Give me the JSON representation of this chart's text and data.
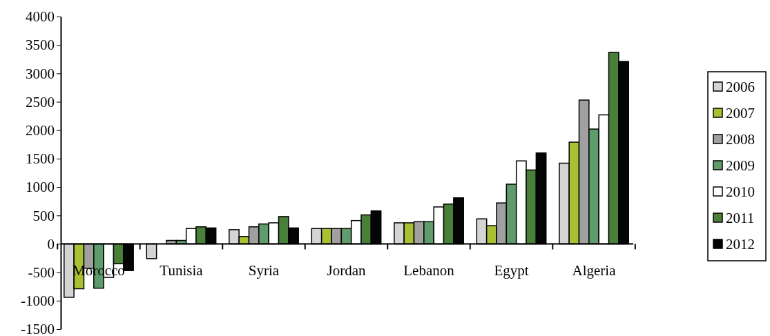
{
  "chart_data": {
    "type": "bar",
    "categories": [
      "Morocco",
      "Tunisia",
      "Syria",
      "Jordan",
      "Lebanon",
      "Egypt",
      "Algeria"
    ],
    "series": [
      {
        "name": "2006",
        "color": "#d4d4d4",
        "values": [
          -940,
          -260,
          250,
          270,
          370,
          440,
          1420
        ]
      },
      {
        "name": "2007",
        "color": "#a8c034",
        "values": [
          -790,
          0,
          130,
          270,
          370,
          320,
          1790
        ]
      },
      {
        "name": "2008",
        "color": "#a0a0a0",
        "values": [
          -430,
          60,
          300,
          270,
          390,
          720,
          2530
        ]
      },
      {
        "name": "2009",
        "color": "#5e9c6c",
        "values": [
          -780,
          60,
          350,
          270,
          390,
          1050,
          2020
        ]
      },
      {
        "name": "2010",
        "color": "#ffffff",
        "values": [
          -590,
          270,
          370,
          410,
          650,
          1460,
          2270
        ]
      },
      {
        "name": "2011",
        "color": "#4a7f38",
        "values": [
          -350,
          300,
          480,
          510,
          700,
          1300,
          3370
        ]
      },
      {
        "name": "2012",
        "color": "#050505",
        "values": [
          -470,
          280,
          280,
          580,
          810,
          1600,
          3210
        ]
      }
    ],
    "ylim": [
      -1500,
      4000
    ],
    "yticks": [
      -1500,
      -1000,
      -500,
      0,
      500,
      1000,
      1500,
      2000,
      2500,
      3000,
      3500,
      4000
    ],
    "grid": false,
    "legend": "right"
  }
}
